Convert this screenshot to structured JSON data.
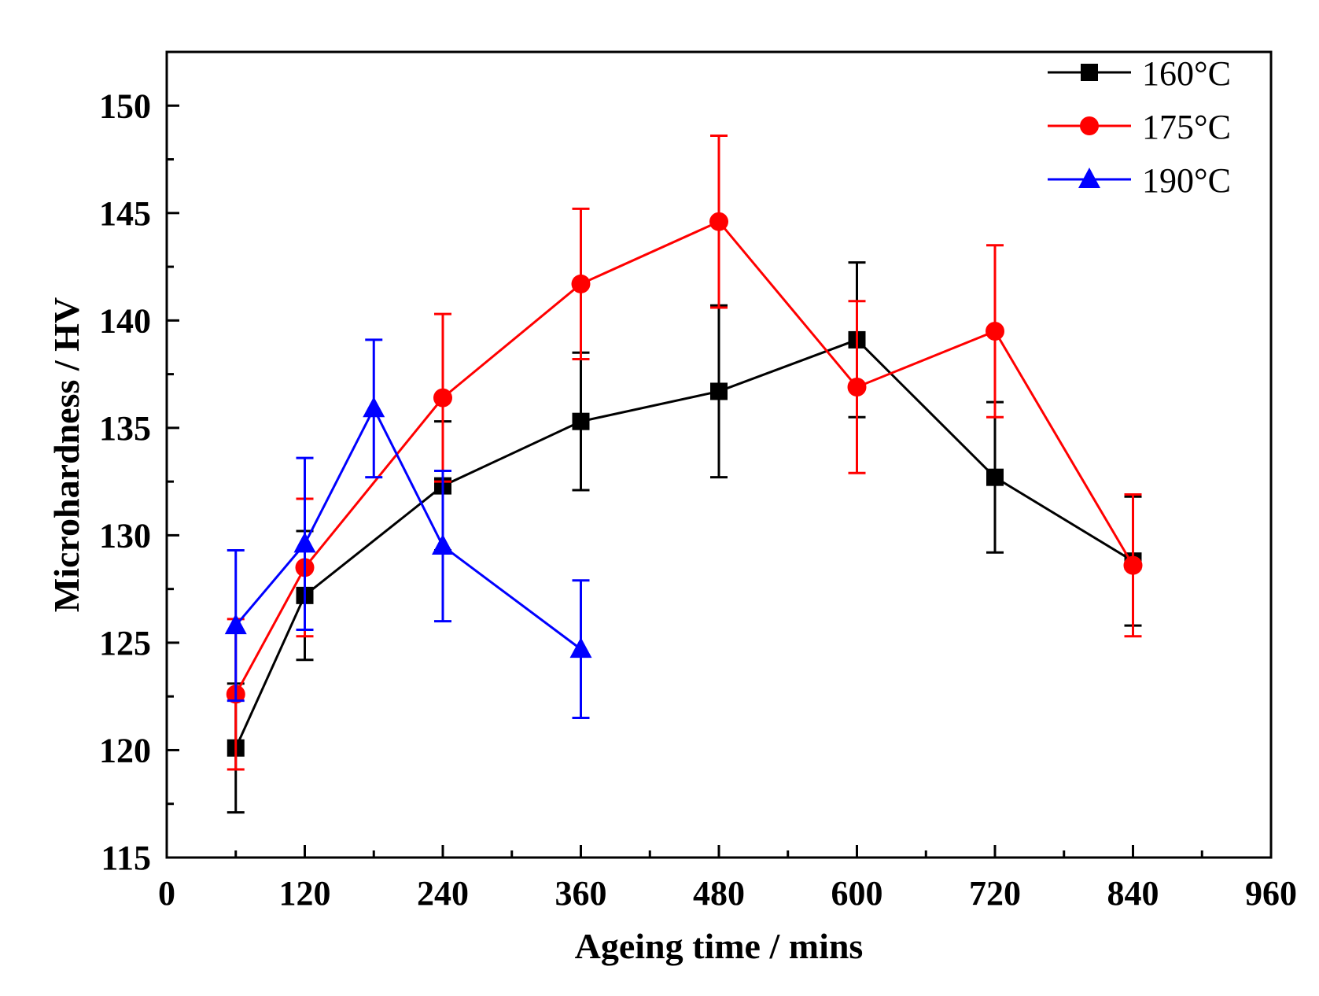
{
  "chart_data": {
    "type": "line",
    "title": "",
    "xlabel": "Ageing time / mins",
    "ylabel": "Microhardness / HV",
    "xlim": [
      0,
      960
    ],
    "ylim": [
      115,
      152.5
    ],
    "xticks": [
      0,
      120,
      240,
      360,
      480,
      600,
      720,
      840,
      960
    ],
    "yticks": [
      115,
      120,
      125,
      130,
      135,
      140,
      145,
      150
    ],
    "x_minor_step": 60,
    "y_minor_step": 2.5,
    "grid": false,
    "legend_position": "top-right",
    "series": [
      {
        "name": "160°C",
        "color": "#000000",
        "marker": "square",
        "x": [
          60,
          120,
          240,
          360,
          480,
          600,
          720,
          840
        ],
        "y": [
          120.1,
          127.2,
          132.3,
          135.3,
          136.7,
          139.1,
          132.7,
          128.8
        ],
        "err": [
          3.0,
          3.0,
          3.0,
          3.2,
          4.0,
          3.6,
          3.5,
          3.0
        ]
      },
      {
        "name": "175°C",
        "color": "#ff0000",
        "marker": "circle",
        "x": [
          60,
          120,
          240,
          360,
          480,
          600,
          720,
          840
        ],
        "y": [
          122.6,
          128.5,
          136.4,
          141.7,
          144.6,
          136.9,
          139.5,
          128.6
        ],
        "err": [
          3.5,
          3.2,
          3.9,
          3.5,
          4.0,
          4.0,
          4.0,
          3.3
        ]
      },
      {
        "name": "190°C",
        "color": "#0000ff",
        "marker": "triangle",
        "x": [
          60,
          120,
          180,
          240,
          360
        ],
        "y": [
          125.8,
          129.6,
          135.9,
          129.5,
          124.7
        ],
        "err": [
          3.5,
          4.0,
          3.2,
          3.5,
          3.2
        ]
      }
    ]
  }
}
